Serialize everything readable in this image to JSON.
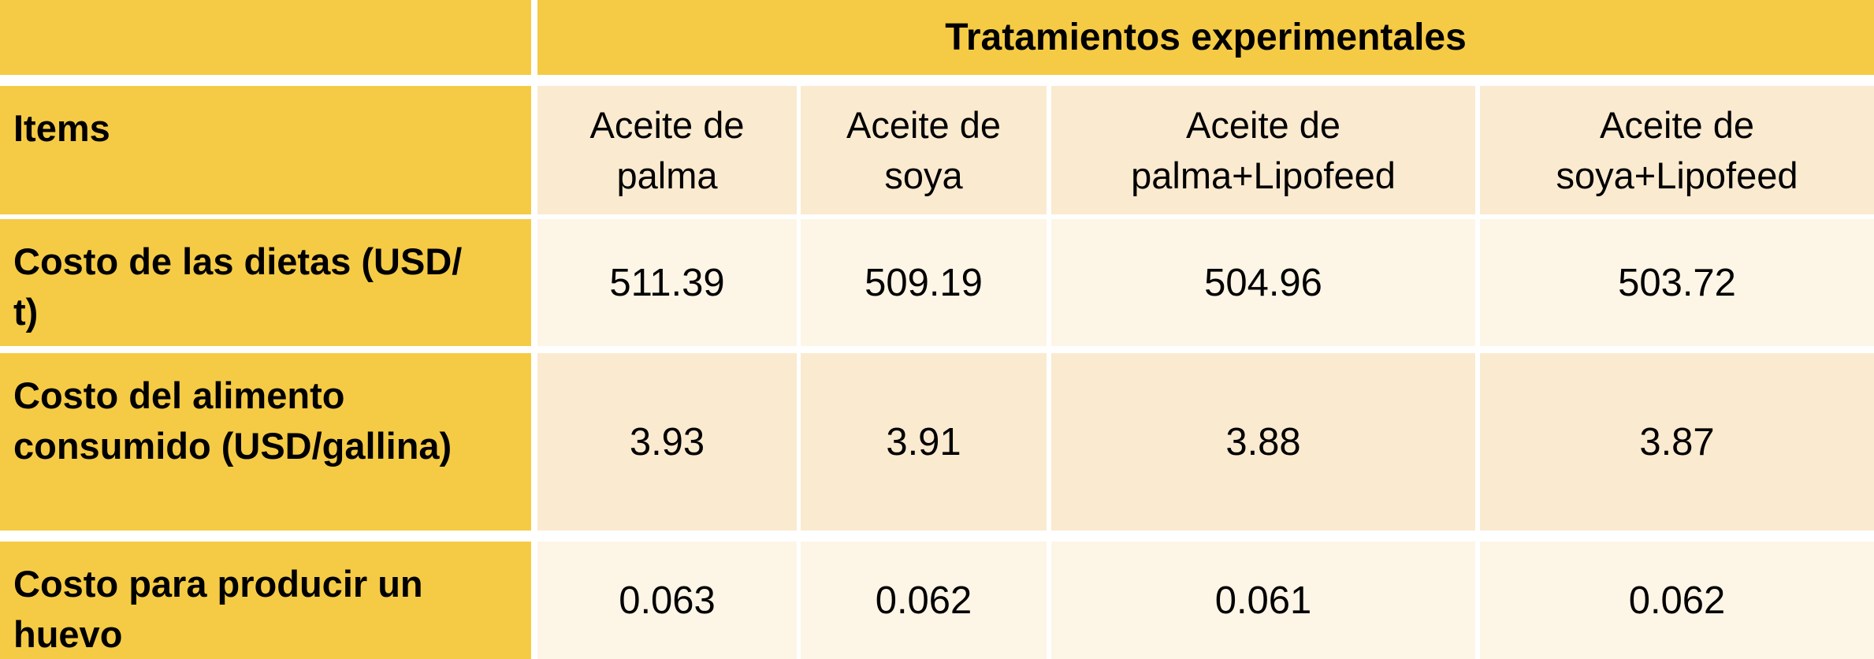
{
  "table": {
    "title": "Tratamientos experimentales",
    "corner_label": "Items",
    "column_headers": [
      {
        "lines": [
          "Aceite de",
          "palma"
        ]
      },
      {
        "lines": [
          "Aceite de",
          "soya"
        ]
      },
      {
        "lines": [
          "Aceite de",
          "palma+Lipofeed"
        ]
      },
      {
        "lines": [
          "Aceite de",
          "soya+Lipofeed"
        ]
      }
    ],
    "rows": [
      {
        "label_lines": [
          "Costo de las dietas (USD/",
          "t)"
        ],
        "values": [
          "511.39",
          "509.19",
          "504.96",
          "503.72"
        ]
      },
      {
        "label_lines": [
          "Costo del alimento",
          "consumido (USD/gallina)"
        ],
        "values": [
          "3.93",
          "3.91",
          "3.88",
          "3.87"
        ]
      },
      {
        "label_lines": [
          "Costo para producir un",
          "huevo"
        ],
        "values": [
          "0.063",
          "0.062",
          "0.061",
          "0.062"
        ]
      }
    ],
    "colors": {
      "header_yellow": "#F5CB45",
      "cell_cream_dark": "#FAEACF",
      "cell_cream_light": "#FDF5E6",
      "grid_white": "#FFFFFF",
      "text_black": "#000000"
    }
  },
  "chart_data": {
    "type": "table",
    "title": "Tratamientos experimentales",
    "row_header_label": "Items",
    "columns": [
      "Aceite de palma",
      "Aceite de soya",
      "Aceite de palma+Lipofeed",
      "Aceite de soya+Lipofeed"
    ],
    "rows": [
      {
        "item": "Costo de las dietas (USD/t)",
        "values": [
          511.39,
          509.19,
          504.96,
          503.72
        ]
      },
      {
        "item": "Costo del alimento consumido (USD/gallina)",
        "values": [
          3.93,
          3.91,
          3.88,
          3.87
        ]
      },
      {
        "item": "Costo para producir un huevo",
        "values": [
          0.063,
          0.062,
          0.061,
          0.062
        ]
      }
    ],
    "layout": {
      "header_fill": "#F5CB45",
      "body_fill_alt": [
        "#FDF5E6",
        "#FAEACF"
      ],
      "grid_color": "#FFFFFF"
    }
  }
}
